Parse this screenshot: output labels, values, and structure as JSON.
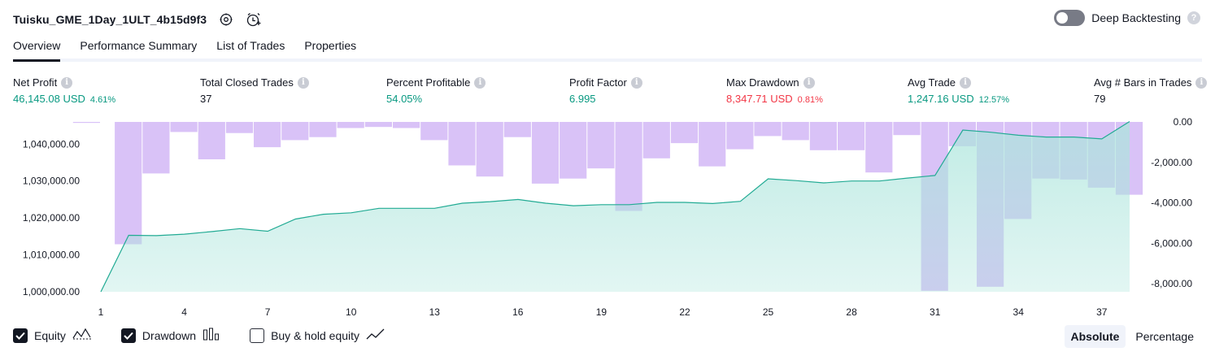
{
  "header": {
    "strategy_name": "Tuisku_GME_1Day_1ULT_4b15d9f3",
    "deep_backtesting_label": "Deep Backtesting",
    "deep_backtesting_enabled": false
  },
  "tabs": [
    {
      "label": "Overview",
      "active": true
    },
    {
      "label": "Performance Summary",
      "active": false
    },
    {
      "label": "List of Trades",
      "active": false
    },
    {
      "label": "Properties",
      "active": false
    }
  ],
  "metrics": {
    "net_profit": {
      "label": "Net Profit",
      "value": "46,145.08 USD",
      "pct": "4.61%"
    },
    "total_closed_trades": {
      "label": "Total Closed Trades",
      "value": "37"
    },
    "percent_profitable": {
      "label": "Percent Profitable",
      "value": "54.05%"
    },
    "profit_factor": {
      "label": "Profit Factor",
      "value": "6.995"
    },
    "max_drawdown": {
      "label": "Max Drawdown",
      "value": "8,347.71 USD",
      "pct": "0.81%"
    },
    "avg_trade": {
      "label": "Avg Trade",
      "value": "1,247.16 USD",
      "pct": "12.57%"
    },
    "avg_bars": {
      "label": "Avg # Bars in Trades",
      "value": "79"
    }
  },
  "legend": {
    "equity_label": "Equity",
    "equity_checked": true,
    "drawdown_label": "Drawdown",
    "drawdown_checked": true,
    "buyhold_label": "Buy & hold equity",
    "buyhold_checked": false
  },
  "mode": {
    "absolute_label": "Absolute",
    "percentage_label": "Percentage",
    "selected": "Absolute"
  },
  "colors": {
    "equity_line": "#22ab94",
    "equity_fill": "#ace5dc",
    "drawdown_fill": "#c29cf2",
    "positive": "#089981",
    "negative": "#f23645"
  },
  "chart_data": {
    "type": "area",
    "x_ticks": [
      1,
      4,
      7,
      10,
      13,
      16,
      19,
      22,
      25,
      28,
      31,
      34,
      37
    ],
    "y_left_ticks": [
      "1,000,000.00",
      "1,010,000.00",
      "1,020,000.00",
      "1,030,000.00",
      "1,040,000.00"
    ],
    "y_left_range": [
      1000000,
      1046000
    ],
    "y_right_ticks": [
      "0.00",
      "-2,000.00",
      "-4,000.00",
      "-6,000.00",
      "-8,000.00"
    ],
    "y_right_range": [
      -8400,
      0
    ],
    "series": [
      {
        "name": "Equity",
        "axis": "left",
        "x": [
          1,
          2,
          3,
          4,
          5,
          6,
          7,
          8,
          9,
          10,
          11,
          12,
          13,
          14,
          15,
          16,
          17,
          18,
          19,
          20,
          21,
          22,
          23,
          24,
          25,
          26,
          27,
          28,
          29,
          30,
          31,
          32,
          33,
          34,
          35,
          36,
          37,
          38
        ],
        "values": [
          1000000,
          1015300,
          1015200,
          1015600,
          1016300,
          1017100,
          1016400,
          1019700,
          1021000,
          1021400,
          1022600,
          1022600,
          1022600,
          1024000,
          1024400,
          1025000,
          1024000,
          1023300,
          1023600,
          1023600,
          1024200,
          1024200,
          1023900,
          1024500,
          1030600,
          1030100,
          1029500,
          1030000,
          1030000,
          1030800,
          1031500,
          1043800,
          1043200,
          1042400,
          1041900,
          1041900,
          1041400,
          1046100
        ]
      },
      {
        "name": "Drawdown",
        "axis": "right",
        "x": [
          1,
          2,
          3,
          4,
          5,
          6,
          7,
          8,
          9,
          10,
          11,
          12,
          13,
          14,
          15,
          16,
          17,
          18,
          19,
          20,
          21,
          22,
          23,
          24,
          25,
          26,
          27,
          28,
          29,
          30,
          31,
          32,
          33,
          34,
          35,
          36,
          37,
          38
        ],
        "values": [
          -50,
          -6050,
          -2550,
          -500,
          -1850,
          -550,
          -1250,
          -900,
          -750,
          -300,
          -250,
          -300,
          -900,
          -2150,
          -2700,
          -750,
          -3050,
          -2800,
          -2300,
          -4400,
          -1800,
          -1050,
          -2200,
          -1350,
          -700,
          -900,
          -1400,
          -1400,
          -2500,
          -650,
          -8350,
          -1200,
          -8150,
          -4800,
          -2800,
          -2850,
          -3250,
          -3600
        ]
      }
    ]
  }
}
